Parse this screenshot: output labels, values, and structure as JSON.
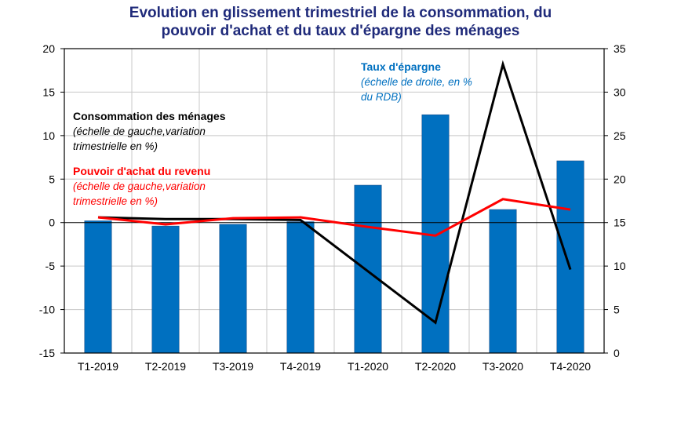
{
  "chart_data": {
    "type": "bar+line",
    "title_lines": [
      "Evolution en glissement trimestriel de la consommation, du",
      "pouvoir d'achat et du taux d'épargne des ménages"
    ],
    "categories": [
      "T1-2019",
      "T2-2019",
      "T3-2019",
      "T4-2019",
      "T1-2020",
      "T2-2020",
      "T3-2020",
      "T4-2020"
    ],
    "y_left": {
      "min": -15,
      "max": 20,
      "ticks": [
        20,
        15,
        10,
        5,
        0,
        -5,
        -10,
        -15
      ]
    },
    "y_right": {
      "min": 0,
      "max": 35,
      "ticks": [
        35,
        30,
        25,
        20,
        15,
        10,
        5,
        0
      ]
    },
    "series": [
      {
        "name": "Taux d'épargne",
        "type": "bar",
        "axis": "right",
        "color": "#0070c0",
        "values": [
          15.2,
          14.6,
          14.8,
          15.1,
          19.3,
          27.4,
          16.5,
          22.1
        ]
      },
      {
        "name": "Consommation des ménages",
        "type": "line",
        "axis": "left",
        "color": "#000000",
        "values": [
          0.6,
          0.4,
          0.4,
          0.3,
          -5.6,
          -11.5,
          18.2,
          -5.4
        ]
      },
      {
        "name": "Pouvoir d'achat du revenu",
        "type": "line",
        "axis": "left",
        "color": "#ff0000",
        "values": [
          0.6,
          -0.2,
          0.5,
          0.6,
          -0.5,
          -1.5,
          2.7,
          1.5
        ]
      }
    ],
    "annotations": {
      "epargne": {
        "title": "Taux d'épargne",
        "lines": [
          "(échelle de droite, en %",
          "du RDB)"
        ],
        "color": "#0070c0"
      },
      "consommation": {
        "title": "Consommation des ménages",
        "lines": [
          "(échelle de gauche,variation",
          "trimestrielle en %)"
        ],
        "color": "#000000"
      },
      "pouvoir": {
        "title": "Pouvoir d'achat du revenu",
        "lines": [
          "(échelle de gauche,variation",
          "trimestrielle en %)"
        ],
        "color": "#ff0000"
      }
    },
    "grid": true
  }
}
